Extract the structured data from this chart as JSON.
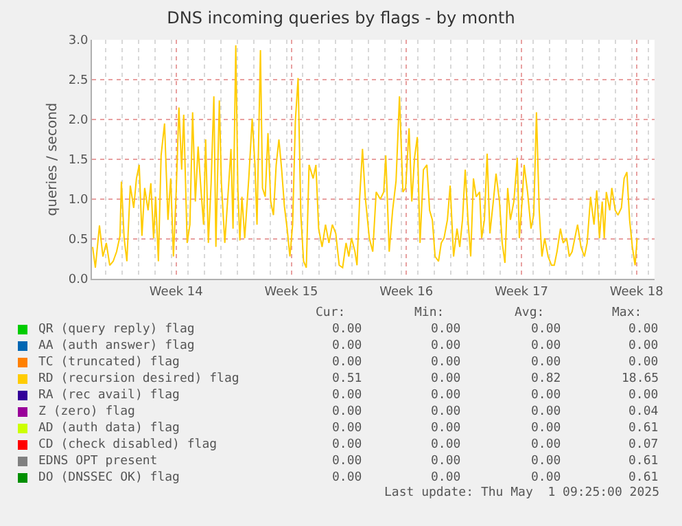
{
  "chart_data": {
    "type": "line",
    "title": "DNS incoming queries by flags - by month",
    "ylabel": "queries / second",
    "xlim": [
      "2025-03-28T04:00",
      "2025-05-01T09:25"
    ],
    "xticks": [
      {
        "value": "2025-04-02T07:00",
        "label": "Week 14"
      },
      {
        "value": "2025-04-09T07:00",
        "label": "Week 15"
      },
      {
        "value": "2025-04-16T07:00",
        "label": "Week 16"
      },
      {
        "value": "2025-04-23T07:00",
        "label": "Week 17"
      },
      {
        "value": "2025-04-30T07:00",
        "label": "Week 18"
      }
    ],
    "ylim": [
      0,
      3.0
    ],
    "yticks": [
      {
        "value": 0,
        "label": "0.0"
      },
      {
        "value": 0.5,
        "label": "0.5"
      },
      {
        "value": 1.0,
        "label": "1.0"
      },
      {
        "value": 1.5,
        "label": "1.5"
      },
      {
        "value": 2.0,
        "label": "2.0"
      },
      {
        "value": 2.5,
        "label": "2.5"
      },
      {
        "value": 3.0,
        "label": "3.0"
      }
    ],
    "grid": true,
    "legend": "bottom",
    "marker": "none",
    "line_style": "solid",
    "series": [
      {
        "name": "QR (query reply) flag",
        "color": "#00cc00"
      },
      {
        "name": "AA (auth answer) flag",
        "color": "#0066b3"
      },
      {
        "name": "TC (truncated) flag",
        "color": "#ff8000"
      },
      {
        "name": "RD (recursion desired) flag",
        "color": "#ffcc00",
        "x": [
          "2025-03-28T05:00",
          "2025-03-28T09:00",
          "2025-03-28T15:00",
          "2025-03-28T20:00",
          "2025-03-29T01:00",
          "2025-03-29T06:00",
          "2025-03-29T11:00",
          "2025-03-29T16:00",
          "2025-03-29T21:00",
          "2025-03-29T23:00",
          "2025-03-30T03:00",
          "2025-03-30T07:00",
          "2025-03-30T12:00",
          "2025-03-30T17:00",
          "2025-03-30T21:00",
          "2025-03-31T01:00",
          "2025-03-31T05:00",
          "2025-03-31T09:00",
          "2025-03-31T14:00",
          "2025-03-31T18:00",
          "2025-03-31T22:00",
          "2025-04-01T01:00",
          "2025-04-01T05:00",
          "2025-04-01T09:00",
          "2025-04-01T14:00",
          "2025-04-01T19:00",
          "2025-04-01T23:00",
          "2025-04-02T03:00",
          "2025-04-02T07:00",
          "2025-04-02T11:00",
          "2025-04-02T15:00",
          "2025-04-02T18:00",
          "2025-04-02T23:00",
          "2025-04-03T03:00",
          "2025-04-03T07:00",
          "2025-04-03T11:00",
          "2025-04-03T15:00",
          "2025-04-03T19:00",
          "2025-04-03T23:00",
          "2025-04-04T02:00",
          "2025-04-04T06:00",
          "2025-04-04T10:00",
          "2025-04-04T14:00",
          "2025-04-04T17:00",
          "2025-04-04T22:00",
          "2025-04-05T01:00",
          "2025-04-05T06:00",
          "2025-04-05T10:00",
          "2025-04-05T15:00",
          "2025-04-05T18:00",
          "2025-04-05T22:00",
          "2025-04-06T01:00",
          "2025-04-06T04:00",
          "2025-04-06T07:00",
          "2025-04-06T11:00",
          "2025-04-06T17:00",
          "2025-04-06T22:00",
          "2025-04-07T02:00",
          "2025-04-07T05:00",
          "2025-04-07T10:00",
          "2025-04-07T13:00",
          "2025-04-07T17:00",
          "2025-04-07T21:00",
          "2025-04-08T01:00",
          "2025-04-08T05:00",
          "2025-04-08T09:00",
          "2025-04-08T13:00",
          "2025-04-08T17:00",
          "2025-04-08T21:00",
          "2025-04-09T01:00",
          "2025-04-09T05:00",
          "2025-04-09T09:00",
          "2025-04-09T13:00",
          "2025-04-09T17:00",
          "2025-04-09T21:00",
          "2025-04-10T01:00",
          "2025-04-10T05:00",
          "2025-04-10T09:00",
          "2025-04-10T15:00",
          "2025-04-10T19:00",
          "2025-04-10T23:00",
          "2025-04-11T04:00",
          "2025-04-11T09:00",
          "2025-04-11T14:00",
          "2025-04-11T19:00",
          "2025-04-12T00:00",
          "2025-04-12T05:00",
          "2025-04-12T10:00",
          "2025-04-12T15:00",
          "2025-04-12T19:00",
          "2025-04-12T23:00",
          "2025-04-13T04:00",
          "2025-04-13T07:00",
          "2025-04-13T11:00",
          "2025-04-13T15:00",
          "2025-04-13T19:00",
          "2025-04-14T01:00",
          "2025-04-14T06:00",
          "2025-04-14T11:00",
          "2025-04-14T17:00",
          "2025-04-14T22:00",
          "2025-04-15T01:00",
          "2025-04-15T06:00",
          "2025-04-15T11:00",
          "2025-04-15T16:00",
          "2025-04-15T21:00",
          "2025-04-16T02:00",
          "2025-04-16T06:00",
          "2025-04-16T11:00",
          "2025-04-16T15:00",
          "2025-04-16T19:00",
          "2025-04-16T23:00",
          "2025-04-17T03:00",
          "2025-04-17T08:00",
          "2025-04-17T13:00",
          "2025-04-17T17:00",
          "2025-04-17T21:00",
          "2025-04-18T01:00",
          "2025-04-18T06:00",
          "2025-04-18T10:00",
          "2025-04-18T14:00",
          "2025-04-18T19:00",
          "2025-04-18T23:00",
          "2025-04-19T04:00",
          "2025-04-19T09:00",
          "2025-04-19T13:00",
          "2025-04-19T17:00",
          "2025-04-19T21:00",
          "2025-04-20T01:00",
          "2025-04-20T05:00",
          "2025-04-20T09:00",
          "2025-04-20T13:00",
          "2025-04-20T18:00",
          "2025-04-20T21:00",
          "2025-04-21T01:00",
          "2025-04-21T05:00",
          "2025-04-21T09:00",
          "2025-04-21T14:00",
          "2025-04-21T18:00",
          "2025-04-21T23:00",
          "2025-04-22T03:00",
          "2025-04-22T07:00",
          "2025-04-22T11:00",
          "2025-04-22T15:00",
          "2025-04-22T20:00",
          "2025-04-23T01:00",
          "2025-04-23T04:00",
          "2025-04-23T08:00",
          "2025-04-23T11:00",
          "2025-04-23T16:00",
          "2025-04-23T21:00",
          "2025-04-24T01:00",
          "2025-04-24T05:00",
          "2025-04-24T09:00",
          "2025-04-24T13:00",
          "2025-04-24T17:00",
          "2025-04-24T22:00",
          "2025-04-25T03:00",
          "2025-04-25T07:00",
          "2025-04-25T11:00",
          "2025-04-25T16:00",
          "2025-04-25T20:00",
          "2025-04-26T01:00",
          "2025-04-26T05:00",
          "2025-04-26T09:00",
          "2025-04-26T13:00",
          "2025-04-26T17:00",
          "2025-04-26T22:00",
          "2025-04-27T03:00",
          "2025-04-27T07:00",
          "2025-04-27T12:00",
          "2025-04-27T17:00",
          "2025-04-27T21:00",
          "2025-04-28T01:00",
          "2025-04-28T05:00",
          "2025-04-28T08:00",
          "2025-04-28T11:00",
          "2025-04-28T16:00",
          "2025-04-28T19:00",
          "2025-04-29T00:00",
          "2025-04-29T04:00",
          "2025-04-29T09:00",
          "2025-04-29T13:00",
          "2025-04-29T17:00",
          "2025-04-29T21:00",
          "2025-04-30T01:00",
          "2025-04-30T05:00",
          "2025-04-30T08:00"
        ],
        "values": [
          0.4,
          0.14,
          0.67,
          0.28,
          0.45,
          0.17,
          0.22,
          0.34,
          0.54,
          1.22,
          0.51,
          0.22,
          1.17,
          0.89,
          1.26,
          1.43,
          0.54,
          1.14,
          0.86,
          1.2,
          0.51,
          1.03,
          0.22,
          1.55,
          1.95,
          0.74,
          1.26,
          0.28,
          1.09,
          2.15,
          1.37,
          2.06,
          0.45,
          0.68,
          2.09,
          0.97,
          1.66,
          1.14,
          0.68,
          1.75,
          0.45,
          1.2,
          2.29,
          0.4,
          2.24,
          1.2,
          0.45,
          0.97,
          1.63,
          0.63,
          2.93,
          1.14,
          0.48,
          1.03,
          0.51,
          1.26,
          2.01,
          1.43,
          0.68,
          2.87,
          1.14,
          1.03,
          1.83,
          0.97,
          0.8,
          1.43,
          1.75,
          1.37,
          0.91,
          0.63,
          0.28,
          0.68,
          1.98,
          2.52,
          0.8,
          0.22,
          0.14,
          1.43,
          1.26,
          1.43,
          0.63,
          0.4,
          0.68,
          0.45,
          0.68,
          0.57,
          0.17,
          0.14,
          0.45,
          0.28,
          0.51,
          0.34,
          0.17,
          1.03,
          1.63,
          1.03,
          0.51,
          0.34,
          1.09,
          1.0,
          1.09,
          1.55,
          0.34,
          0.86,
          1.23,
          2.29,
          1.09,
          1.14,
          1.89,
          0.97,
          1.52,
          1.78,
          0.45,
          1.37,
          1.43,
          0.86,
          0.74,
          0.28,
          0.22,
          0.45,
          0.51,
          0.74,
          1.17,
          0.28,
          0.63,
          0.4,
          0.74,
          1.37,
          0.74,
          0.28,
          1.26,
          1.03,
          1.09,
          0.51,
          0.74,
          1.57,
          0.57,
          0.97,
          1.32,
          0.97,
          0.45,
          0.2,
          1.14,
          0.74,
          0.97,
          1.52,
          0.51,
          0.97,
          1.43,
          1.09,
          0.63,
          0.8,
          2.09,
          0.86,
          0.28,
          0.51,
          0.28,
          0.17,
          0.17,
          0.34,
          0.63,
          0.45,
          0.51,
          0.28,
          0.34,
          0.51,
          0.68,
          0.4,
          0.28,
          0.45,
          1.03,
          0.68,
          1.11,
          0.51,
          0.97,
          0.51,
          1.09,
          0.86,
          1.14,
          0.86,
          0.8,
          0.89,
          1.26,
          1.34,
          0.74,
          0.4,
          0.17,
          0.51
        ]
      },
      {
        "name": "RA (rec avail) flag",
        "color": "#330099"
      },
      {
        "name": "Z (zero) flag",
        "color": "#990099"
      },
      {
        "name": "AD (auth data) flag",
        "color": "#ccff00"
      },
      {
        "name": "CD (check disabled) flag",
        "color": "#ff0000"
      },
      {
        "name": "EDNS OPT present",
        "color": "#808080"
      },
      {
        "name": "DO (DNSSEC OK) flag",
        "color": "#008f00"
      }
    ],
    "annotations": [
      "Cur:",
      "Min:",
      "Avg:",
      "Max:",
      "0.00",
      "0.00",
      "0.00",
      "0.00",
      "0.00",
      "0.00",
      "0.00",
      "0.00",
      "0.00",
      "0.00",
      "0.00",
      "0.00",
      "0.51",
      "0.00",
      "0.82",
      "18.65",
      "0.00",
      "0.00",
      "0.00",
      "0.00",
      "0.00",
      "0.00",
      "0.00",
      "0.04",
      "0.00",
      "0.00",
      "0.00",
      "0.61",
      "0.00",
      "0.00",
      "0.00",
      "0.07",
      "0.00",
      "0.00",
      "0.00",
      "0.61",
      "0.00",
      "0.00",
      "0.00",
      "0.61",
      "Last update: Thu May  1 09:25:00 2025"
    ]
  }
}
